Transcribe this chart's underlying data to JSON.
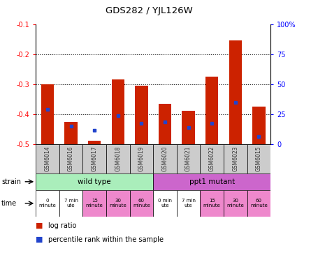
{
  "title": "GDS282 / YJL126W",
  "samples": [
    "GSM6014",
    "GSM6016",
    "GSM6017",
    "GSM6018",
    "GSM6019",
    "GSM6020",
    "GSM6021",
    "GSM6022",
    "GSM6023",
    "GSM6015"
  ],
  "log_ratio": [
    -0.3,
    -0.425,
    -0.49,
    -0.285,
    -0.305,
    -0.365,
    -0.39,
    -0.275,
    -0.155,
    -0.375
  ],
  "percentile": [
    -0.385,
    -0.44,
    -0.455,
    -0.405,
    -0.43,
    -0.425,
    -0.445,
    -0.43,
    -0.36,
    -0.475
  ],
  "ylim_left": [
    -0.5,
    -0.1
  ],
  "ylim_right": [
    0,
    100
  ],
  "yticks_left": [
    -0.5,
    -0.4,
    -0.3,
    -0.2,
    -0.1
  ],
  "yticks_right": [
    0,
    25,
    50,
    75,
    100
  ],
  "ytick_labels_right": [
    "0",
    "25",
    "50",
    "75",
    "100%"
  ],
  "bar_color": "#cc2200",
  "blue_color": "#2244cc",
  "strain_wt_label": "wild type",
  "strain_mut_label": "ppt1 mutant",
  "strain_wt_color": "#aaeebb",
  "strain_mut_color": "#cc66cc",
  "time_labels_wt": [
    "0\nminute",
    "7 min\nute",
    "15\nminute",
    "30\nminute",
    "60\nminute"
  ],
  "time_labels_mut": [
    "0 min\nute",
    "7 min\nute",
    "15\nminute",
    "30\nminute",
    "60\nminute"
  ],
  "time_bg": [
    "#ffffff",
    "#ffffff",
    "#ee88cc",
    "#ee88cc",
    "#ee88cc",
    "#ffffff",
    "#ffffff",
    "#ee88cc",
    "#ee88cc",
    "#ee88cc"
  ],
  "legend_log_ratio": "log ratio",
  "legend_percentile": "percentile rank within the sample",
  "sample_box_color": "#cccccc"
}
